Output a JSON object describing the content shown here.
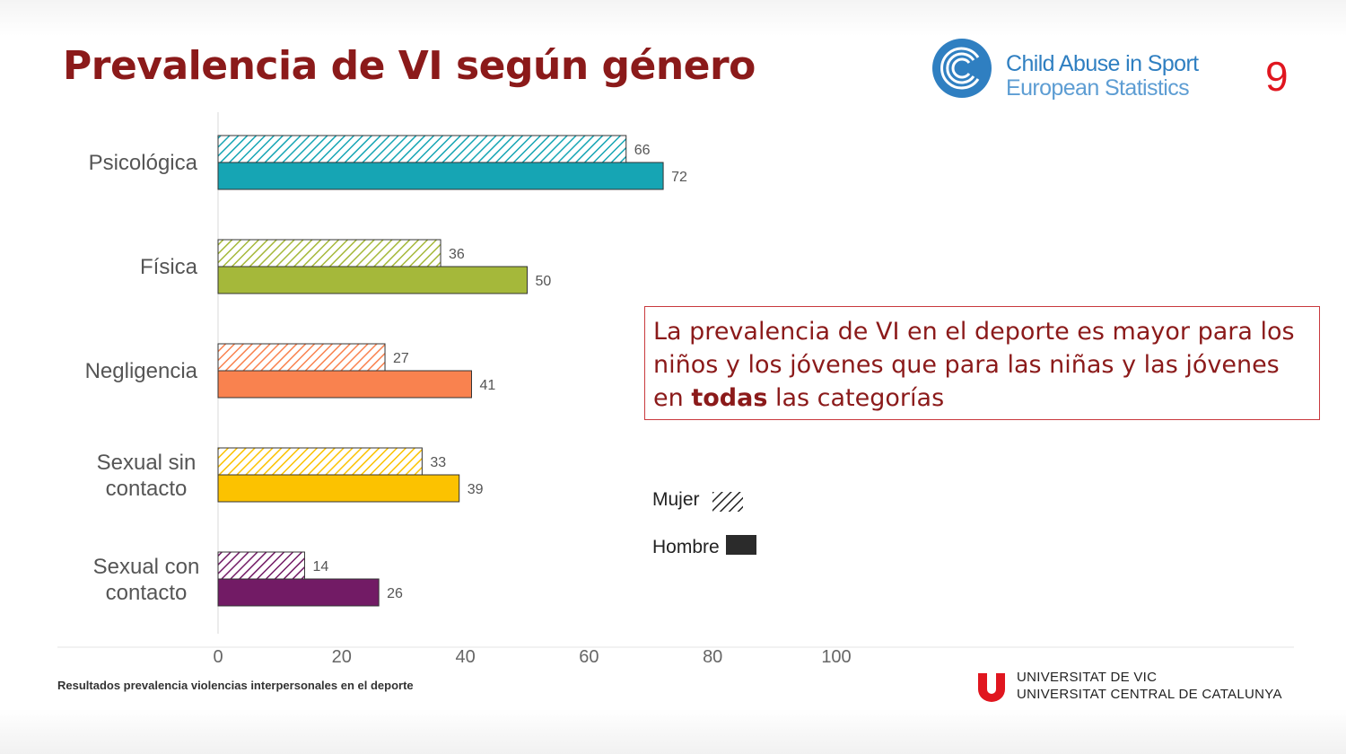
{
  "slide": {
    "title": "Prevalencia de VI según género",
    "page_number": "9",
    "logo_line1": "Child Abuse in Sport",
    "logo_line2": "European Statistics",
    "callout_part1": "La prevalencia de VI en el deporte es mayor para los niños y los jóvenes que para las niñas y las jóvenes en ",
    "callout_bold": "todas",
    "callout_part2": " las categorías",
    "footnote": "Resultados prevalencia violencias interpersonales en el deporte",
    "university_line1": "UNIVERSITAT DE VIC",
    "university_line2": "UNIVERSITAT CENTRAL DE CATALUNYA"
  },
  "legend": {
    "mujer": "Mujer",
    "hombre": "Hombre"
  },
  "colors": {
    "title": "#8b1a1a",
    "page_number": "#e0161f",
    "accent_logo": "#2f7fc1"
  },
  "chart_data": {
    "type": "bar",
    "orientation": "horizontal",
    "categories": [
      "Psicológica",
      "Física",
      "Negligencia",
      "Sexual sin contacto",
      "Sexual con contacto"
    ],
    "category_colors": [
      "#16a5b4",
      "#a5b83a",
      "#f9824f",
      "#fcc200",
      "#721b65"
    ],
    "series": [
      {
        "name": "Mujer",
        "pattern": "hatched",
        "values": [
          66,
          36,
          27,
          33,
          14
        ]
      },
      {
        "name": "Hombre",
        "pattern": "solid",
        "values": [
          72,
          50,
          41,
          39,
          26
        ]
      }
    ],
    "xlim": [
      0,
      100
    ],
    "xticks": [
      0,
      20,
      40,
      60,
      80,
      100
    ],
    "title": "",
    "xlabel": "",
    "ylabel": "",
    "legend_position": "right",
    "grid": false
  }
}
